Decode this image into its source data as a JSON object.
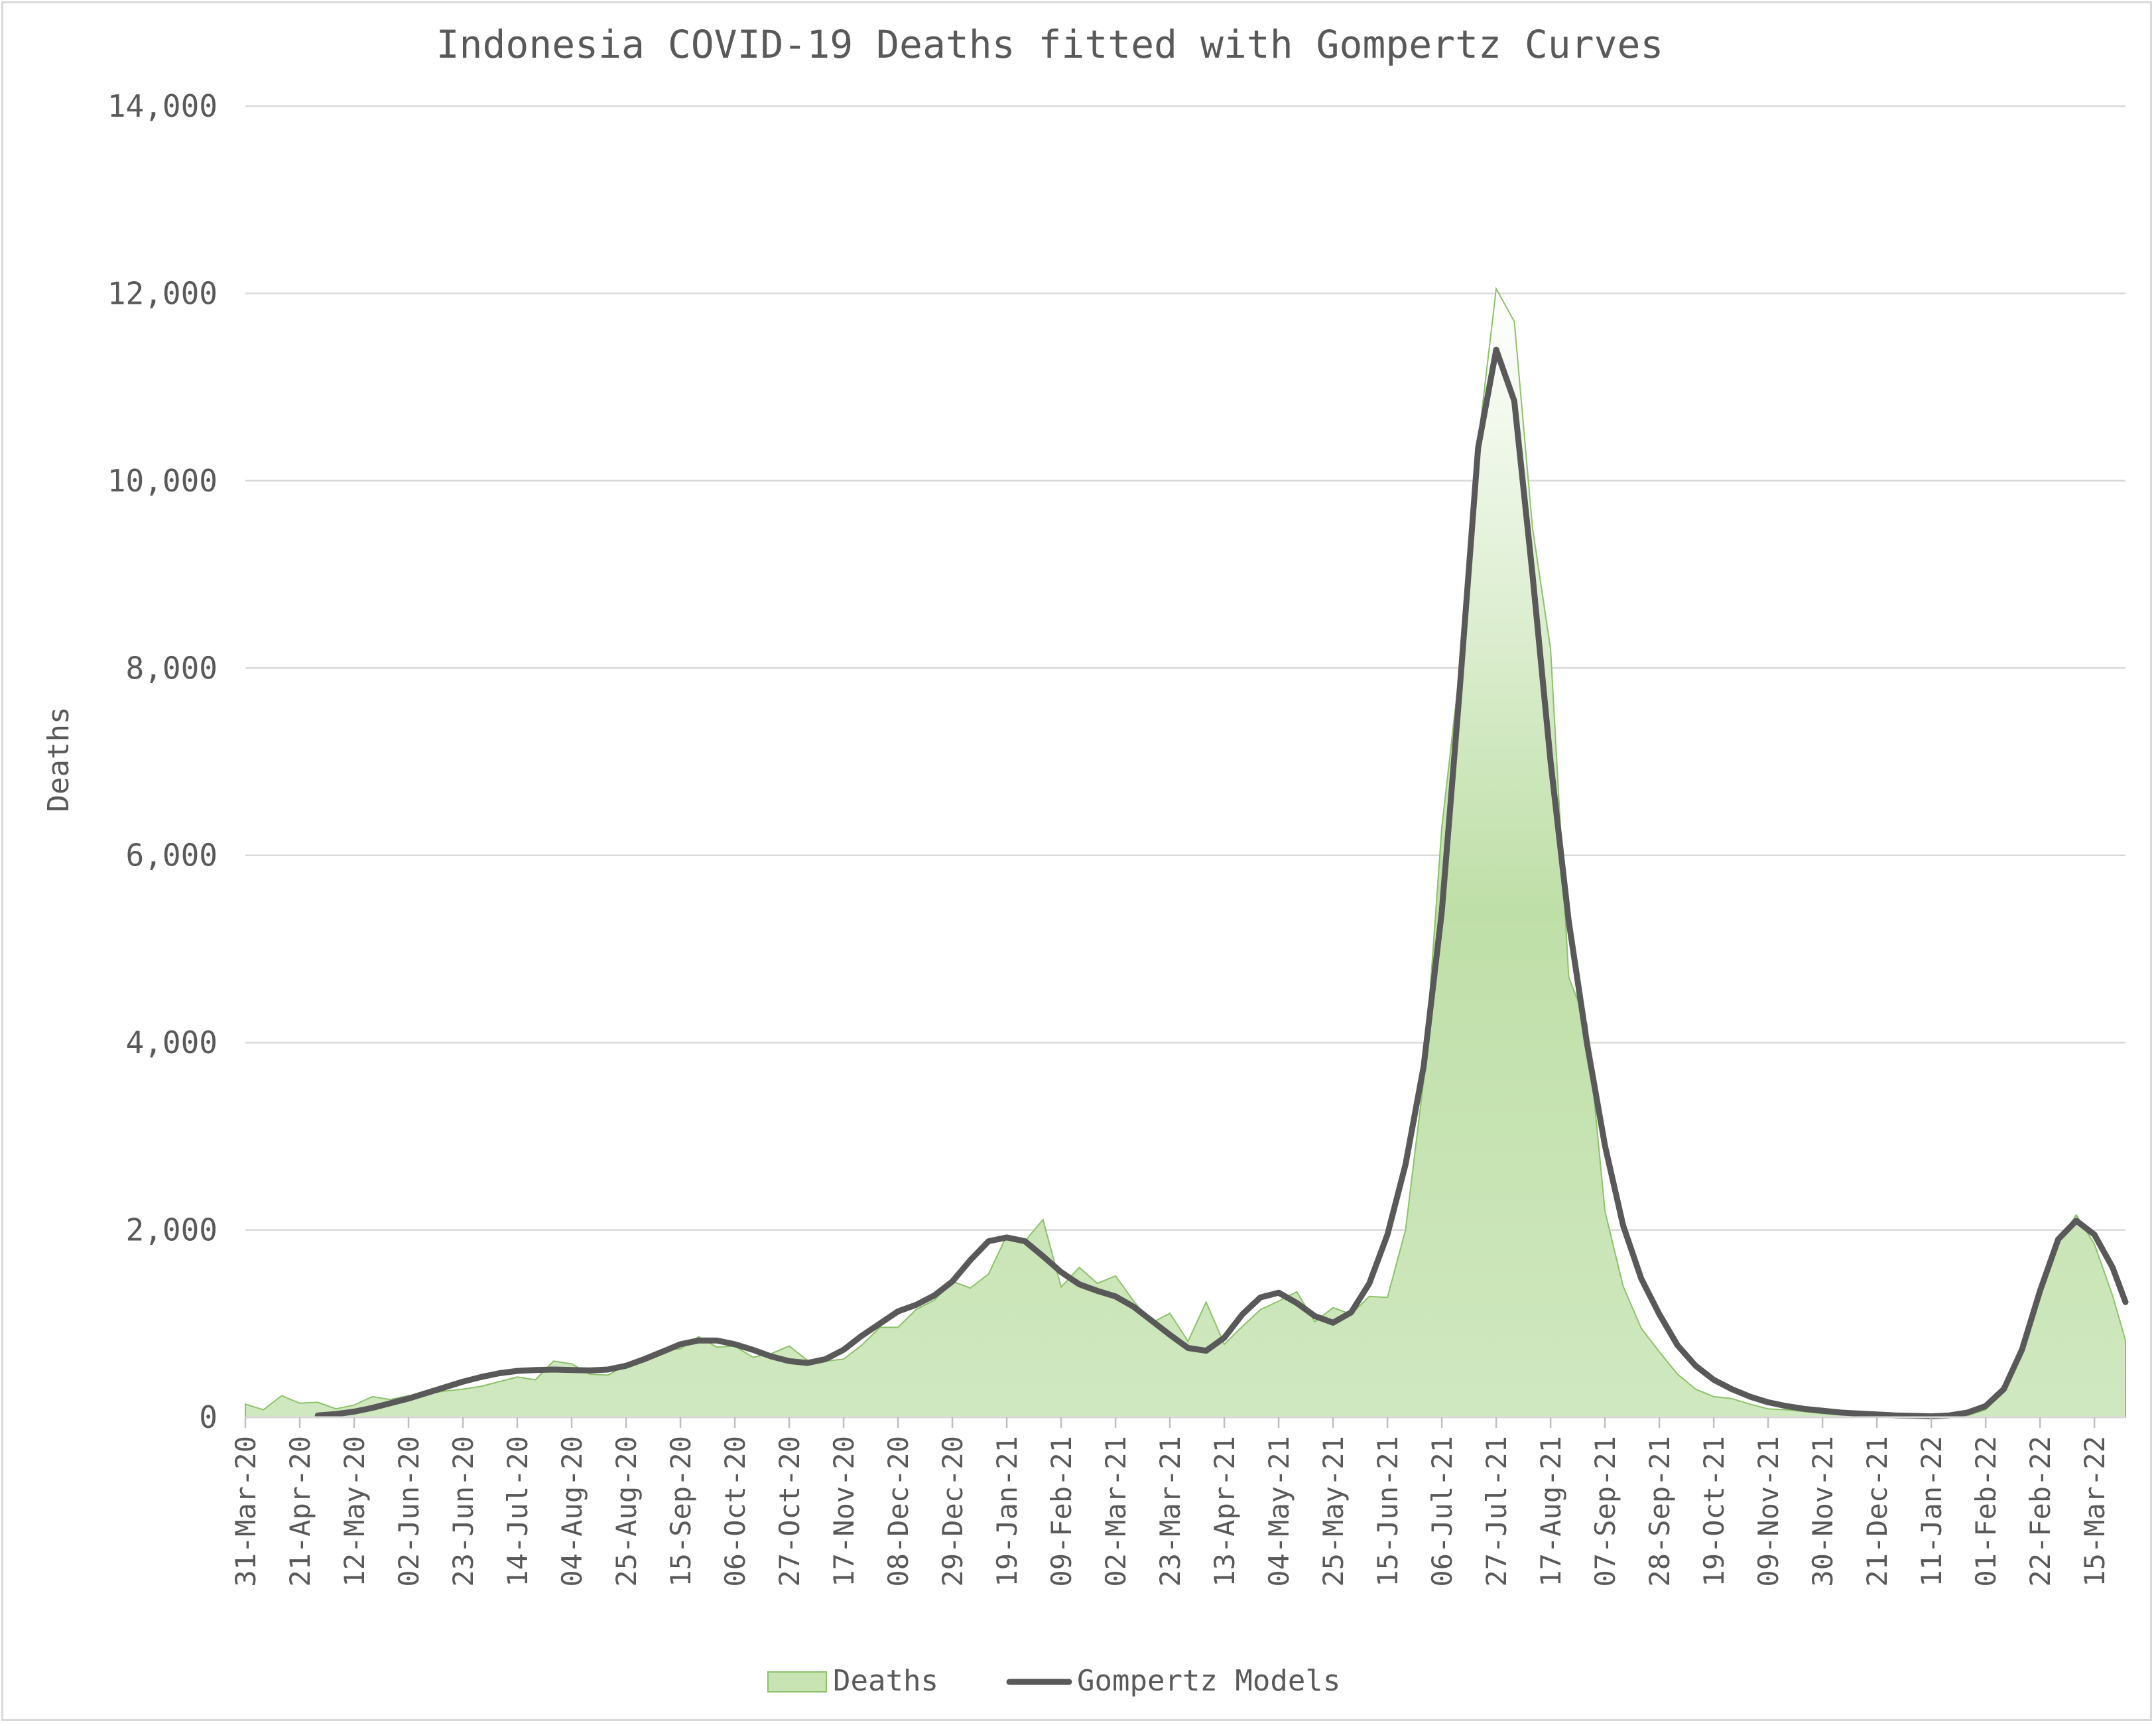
{
  "chart_data": {
    "type": "area",
    "title": "Indonesia COVID-19 Deaths fitted with Gompertz Curves",
    "xlabel": "",
    "ylabel": "Deaths",
    "ylim": [
      0,
      14000
    ],
    "yticks": [
      0,
      2000,
      4000,
      6000,
      8000,
      10000,
      12000,
      14000
    ],
    "ytick_labels": [
      "0",
      "2,000",
      "4,000",
      "6,000",
      "8,000",
      "10,000",
      "12,000",
      "14,000"
    ],
    "xlim": [
      "2020-03-31",
      "2022-03-27"
    ],
    "xtick_labels": [
      "31-Mar-20",
      "21-Apr-20",
      "12-May-20",
      "02-Jun-20",
      "23-Jun-20",
      "14-Jul-20",
      "04-Aug-20",
      "25-Aug-20",
      "15-Sep-20",
      "06-Oct-20",
      "27-Oct-20",
      "17-Nov-20",
      "08-Dec-20",
      "29-Dec-20",
      "19-Jan-21",
      "09-Feb-21",
      "02-Mar-21",
      "23-Mar-21",
      "13-Apr-21",
      "04-May-21",
      "25-May-21",
      "15-Jun-21",
      "06-Jul-21",
      "27-Jul-21",
      "17-Aug-21",
      "07-Sep-21",
      "28-Sep-21",
      "19-Oct-21",
      "09-Nov-21",
      "30-Nov-21",
      "21-Dec-21",
      "11-Jan-22",
      "01-Feb-22",
      "22-Feb-22",
      "15-Mar-22"
    ],
    "grid": true,
    "legend_position": "bottom",
    "series": [
      {
        "name": "Deaths",
        "kind": "area",
        "color": "#9bcb7a",
        "x": [
          "2020-03-31",
          "2020-04-07",
          "2020-04-14",
          "2020-04-21",
          "2020-04-28",
          "2020-05-05",
          "2020-05-12",
          "2020-05-19",
          "2020-05-26",
          "2020-06-02",
          "2020-06-09",
          "2020-06-16",
          "2020-06-23",
          "2020-06-30",
          "2020-07-07",
          "2020-07-14",
          "2020-07-21",
          "2020-07-28",
          "2020-08-04",
          "2020-08-11",
          "2020-08-18",
          "2020-08-25",
          "2020-09-01",
          "2020-09-08",
          "2020-09-15",
          "2020-09-22",
          "2020-09-29",
          "2020-10-06",
          "2020-10-13",
          "2020-10-20",
          "2020-10-27",
          "2020-11-03",
          "2020-11-10",
          "2020-11-17",
          "2020-11-24",
          "2020-12-01",
          "2020-12-08",
          "2020-12-15",
          "2020-12-22",
          "2020-12-29",
          "2021-01-05",
          "2021-01-12",
          "2021-01-19",
          "2021-01-26",
          "2021-02-02",
          "2021-02-09",
          "2021-02-16",
          "2021-02-23",
          "2021-03-02",
          "2021-03-09",
          "2021-03-16",
          "2021-03-23",
          "2021-03-30",
          "2021-04-06",
          "2021-04-13",
          "2021-04-20",
          "2021-04-27",
          "2021-05-04",
          "2021-05-11",
          "2021-05-18",
          "2021-05-25",
          "2021-06-01",
          "2021-06-08",
          "2021-06-15",
          "2021-06-22",
          "2021-06-29",
          "2021-07-06",
          "2021-07-13",
          "2021-07-20",
          "2021-07-27",
          "2021-08-03",
          "2021-08-10",
          "2021-08-17",
          "2021-08-24",
          "2021-08-31",
          "2021-09-07",
          "2021-09-14",
          "2021-09-21",
          "2021-09-28",
          "2021-10-05",
          "2021-10-12",
          "2021-10-19",
          "2021-10-26",
          "2021-11-02",
          "2021-11-09",
          "2021-11-16",
          "2021-11-23",
          "2021-11-30",
          "2021-12-07",
          "2021-12-14",
          "2021-12-21",
          "2021-12-28",
          "2022-01-04",
          "2022-01-11",
          "2022-01-18",
          "2022-01-25",
          "2022-02-01",
          "2022-02-08",
          "2022-02-15",
          "2022-02-22",
          "2022-03-01",
          "2022-03-08",
          "2022-03-15",
          "2022-03-22",
          "2022-03-27"
        ],
        "values": [
          140,
          80,
          230,
          150,
          160,
          90,
          130,
          220,
          190,
          230,
          250,
          280,
          300,
          330,
          380,
          430,
          400,
          600,
          570,
          460,
          450,
          560,
          640,
          720,
          730,
          860,
          750,
          760,
          640,
          680,
          760,
          610,
          600,
          620,
          770,
          960,
          960,
          1150,
          1250,
          1450,
          1380,
          1530,
          1940,
          1880,
          2110,
          1390,
          1600,
          1430,
          1510,
          1240,
          1010,
          1110,
          810,
          1230,
          780,
          970,
          1150,
          1240,
          1340,
          1020,
          1170,
          1100,
          1290,
          1280,
          2000,
          3600,
          6300,
          8000,
          10400,
          12050,
          11700,
          9500,
          8200,
          4700,
          4200,
          2200,
          1400,
          950,
          700,
          460,
          300,
          220,
          200,
          140,
          90,
          80,
          60,
          40,
          30,
          20,
          20,
          10,
          10,
          10,
          10,
          20,
          80,
          330,
          720,
          1420,
          1880,
          2160,
          1850,
          1300,
          820
        ]
      },
      {
        "name": "Gompertz Models",
        "kind": "line",
        "color": "#595959",
        "x": [
          "2020-04-28",
          "2020-05-05",
          "2020-05-12",
          "2020-05-19",
          "2020-05-26",
          "2020-06-02",
          "2020-06-09",
          "2020-06-16",
          "2020-06-23",
          "2020-06-30",
          "2020-07-07",
          "2020-07-14",
          "2020-07-21",
          "2020-07-28",
          "2020-08-04",
          "2020-08-11",
          "2020-08-18",
          "2020-08-25",
          "2020-09-01",
          "2020-09-08",
          "2020-09-15",
          "2020-09-22",
          "2020-09-29",
          "2020-10-06",
          "2020-10-13",
          "2020-10-20",
          "2020-10-27",
          "2020-11-03",
          "2020-11-10",
          "2020-11-17",
          "2020-11-24",
          "2020-12-01",
          "2020-12-08",
          "2020-12-15",
          "2020-12-22",
          "2020-12-29",
          "2021-01-05",
          "2021-01-12",
          "2021-01-19",
          "2021-01-26",
          "2021-02-02",
          "2021-02-09",
          "2021-02-16",
          "2021-02-23",
          "2021-03-02",
          "2021-03-09",
          "2021-03-16",
          "2021-03-23",
          "2021-03-30",
          "2021-04-06",
          "2021-04-13",
          "2021-04-20",
          "2021-04-27",
          "2021-05-04",
          "2021-05-11",
          "2021-05-18",
          "2021-05-25",
          "2021-06-01",
          "2021-06-08",
          "2021-06-15",
          "2021-06-22",
          "2021-06-29",
          "2021-07-06",
          "2021-07-13",
          "2021-07-20",
          "2021-07-27",
          "2021-08-03",
          "2021-08-10",
          "2021-08-17",
          "2021-08-24",
          "2021-08-31",
          "2021-09-07",
          "2021-09-14",
          "2021-09-21",
          "2021-09-28",
          "2021-10-05",
          "2021-10-12",
          "2021-10-19",
          "2021-10-26",
          "2021-11-02",
          "2021-11-09",
          "2021-11-16",
          "2021-11-23",
          "2021-11-30",
          "2021-12-07",
          "2021-12-14",
          "2021-12-21",
          "2021-12-28",
          "2022-01-04",
          "2022-01-11",
          "2022-01-18",
          "2022-01-25",
          "2022-02-01",
          "2022-02-08",
          "2022-02-15",
          "2022-02-22",
          "2022-03-01",
          "2022-03-08",
          "2022-03-15",
          "2022-03-22",
          "2022-03-27"
        ],
        "values": [
          20,
          35,
          60,
          100,
          150,
          200,
          260,
          320,
          380,
          430,
          470,
          495,
          505,
          510,
          505,
          500,
          510,
          550,
          620,
          700,
          780,
          820,
          820,
          780,
          720,
          650,
          600,
          580,
          620,
          720,
          870,
          1000,
          1130,
          1200,
          1300,
          1450,
          1680,
          1880,
          1920,
          1880,
          1720,
          1550,
          1420,
          1350,
          1290,
          1180,
          1030,
          880,
          740,
          710,
          850,
          1100,
          1280,
          1330,
          1220,
          1080,
          1010,
          1120,
          1430,
          1950,
          2700,
          3750,
          5400,
          7800,
          10350,
          11400,
          10850,
          9000,
          7000,
          5300,
          4000,
          2900,
          2050,
          1480,
          1100,
          770,
          550,
          400,
          300,
          220,
          160,
          120,
          90,
          70,
          50,
          40,
          30,
          20,
          15,
          10,
          20,
          50,
          120,
          300,
          720,
          1350,
          1900,
          2100,
          1950,
          1600,
          1230
        ]
      }
    ]
  }
}
